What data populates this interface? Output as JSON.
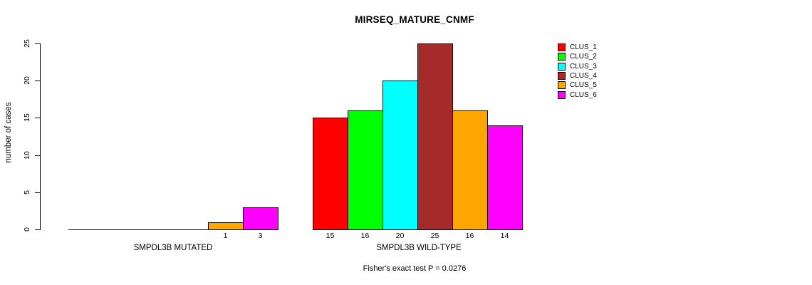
{
  "chart_data": {
    "type": "bar",
    "title": "MIRSEQ_MATURE_CNMF",
    "ylabel": "number of cases",
    "xlabel": "",
    "ylim": [
      0,
      25
    ],
    "yticks": [
      0,
      5,
      10,
      15,
      20,
      25
    ],
    "grid": false,
    "legend_position": "right",
    "categories": [
      "SMPDL3B MUTATED",
      "SMPDL3B WILD-TYPE"
    ],
    "legend": [
      "CLUS_1",
      "CLUS_2",
      "CLUS_3",
      "CLUS_4",
      "CLUS_5",
      "CLUS_6"
    ],
    "series_colors": [
      "#ff0000",
      "#00ff00",
      "#00ffff",
      "#a52a2a",
      "#ffa500",
      "#ff00ff"
    ],
    "series": [
      {
        "name": "CLUS_1",
        "values": [
          0,
          15
        ]
      },
      {
        "name": "CLUS_2",
        "values": [
          0,
          16
        ]
      },
      {
        "name": "CLUS_3",
        "values": [
          0,
          20
        ]
      },
      {
        "name": "CLUS_4",
        "values": [
          0,
          25
        ]
      },
      {
        "name": "CLUS_5",
        "values": [
          1,
          16
        ]
      },
      {
        "name": "CLUS_6",
        "values": [
          3,
          14
        ]
      }
    ],
    "bar_value_labels": {
      "SMPDL3B MUTATED": [
        "1",
        "3"
      ],
      "SMPDL3B WILD-TYPE": [
        "15",
        "16",
        "20",
        "25",
        "16",
        "14"
      ]
    },
    "footnote": "Fisher's exact test P = 0.0276"
  }
}
